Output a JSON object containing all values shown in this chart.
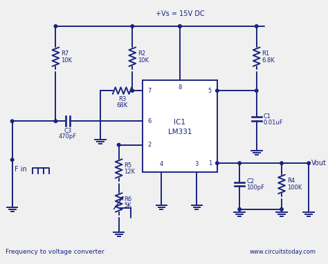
{
  "title": "Frequency to voltage converter",
  "website": "www.circuitstoday.com",
  "vs_label": "+Vs = 15V DC",
  "bg_color": "#f0f0f0",
  "line_color": "#1a237e",
  "text_color": "#1a237e",
  "ic_label_1": "IC1",
  "ic_label_2": "LM331",
  "R1": "6.8K",
  "R2": "10K",
  "R3": "68K",
  "R4": "100K",
  "R5": "12K",
  "R6": "5K",
  "R7": "10K",
  "C1": "0.01uF",
  "C2": "100pF",
  "C3": "470pF",
  "fin_label": "F in",
  "vout_label": "Vout"
}
